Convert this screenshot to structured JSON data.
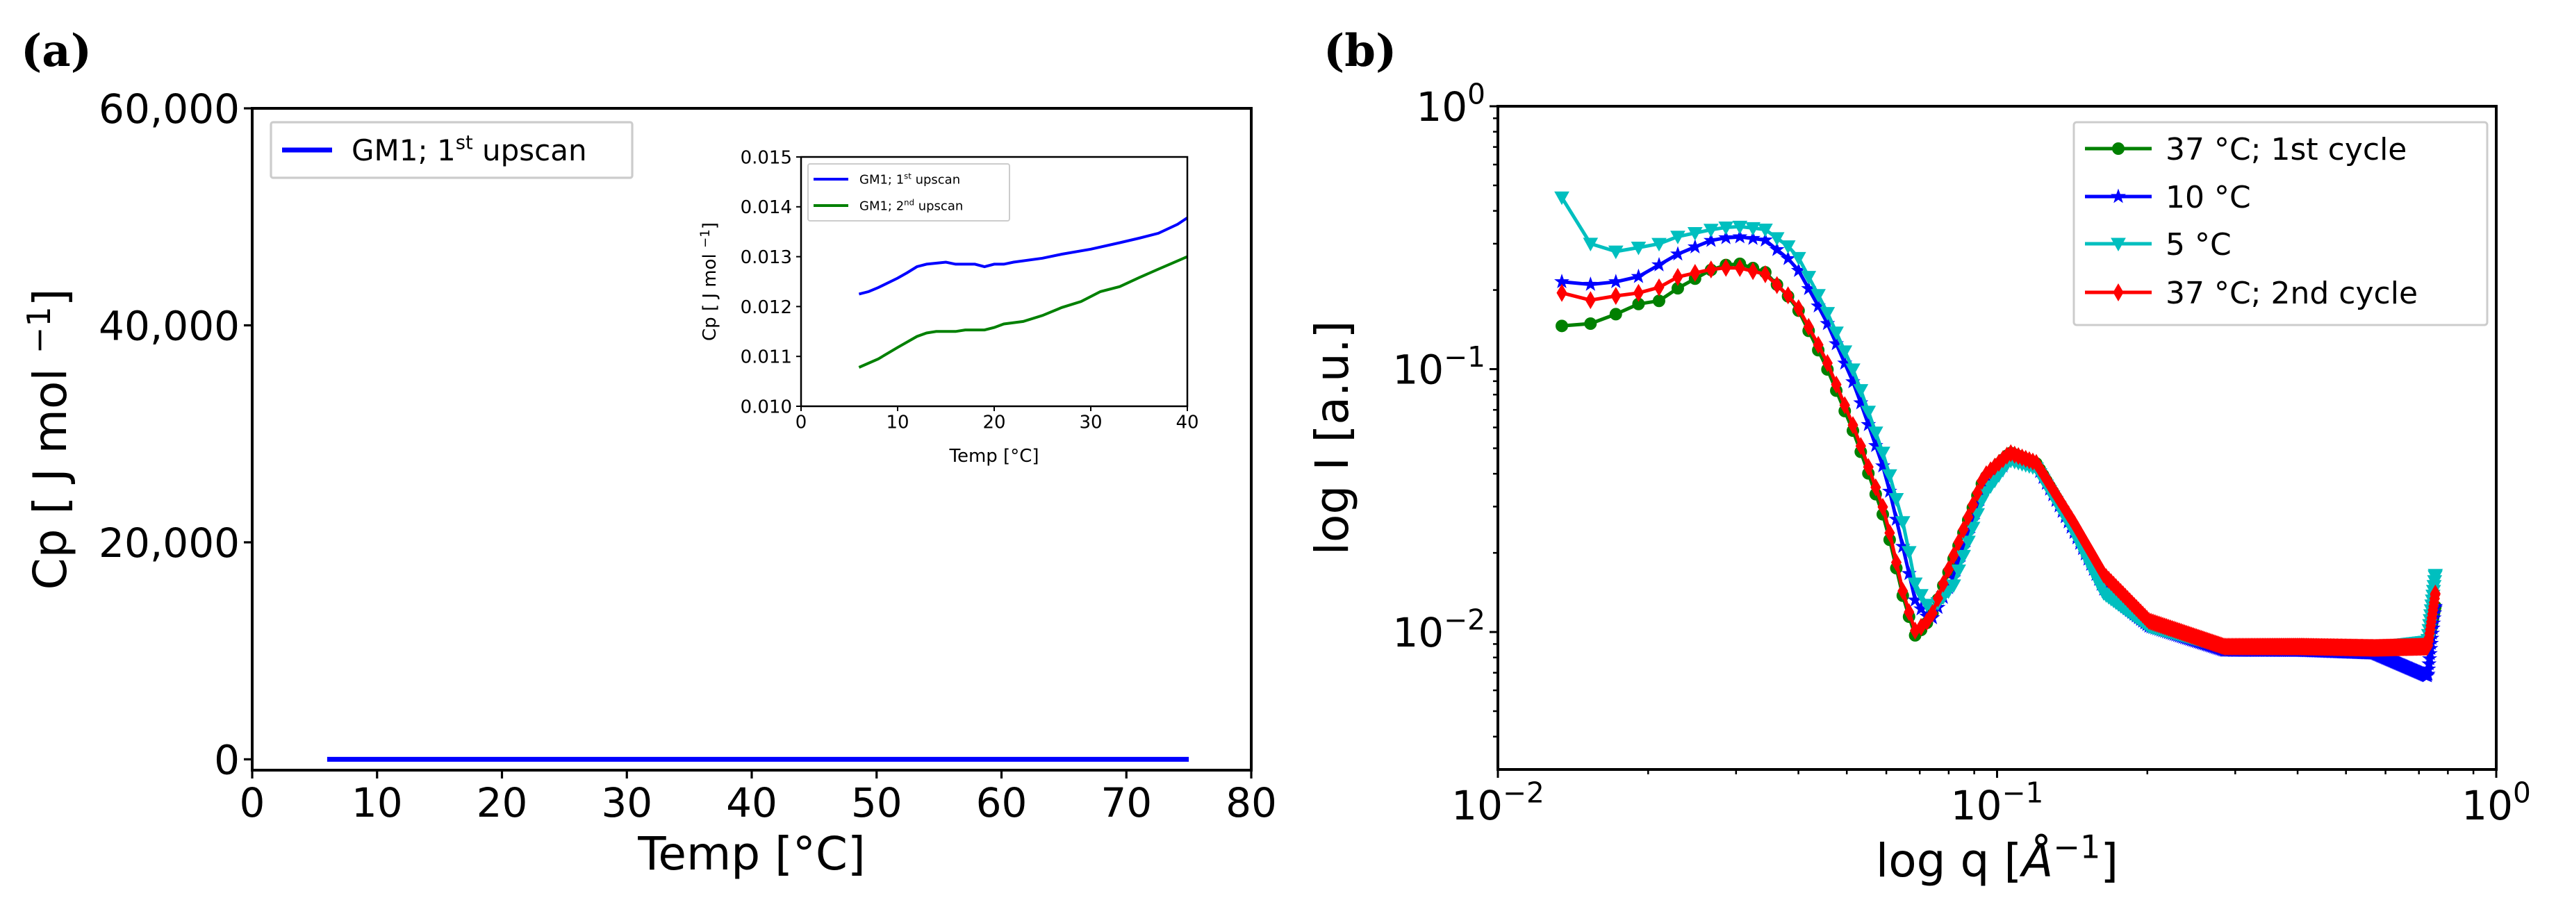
{
  "panel_labels": {
    "a": "(a)",
    "b": "(b)"
  },
  "chart_data": [
    {
      "id": "a_main",
      "type": "line",
      "xlabel": "Temp [°C]",
      "ylabel": {
        "main": "Cp [ J mol ",
        "sup": "−1",
        "close": "]"
      },
      "xlim": [
        0,
        80
      ],
      "ylim": [
        -1000,
        60000
      ],
      "xticks": [
        0,
        10,
        20,
        30,
        40,
        50,
        60,
        70,
        80
      ],
      "xtick_labels": [
        "0",
        "10",
        "20",
        "30",
        "40",
        "50",
        "60",
        "70",
        "80"
      ],
      "yticks": [
        0,
        20000,
        40000,
        60000
      ],
      "ytick_labels": [
        "0",
        "20,000",
        "40,000",
        "60,000"
      ],
      "legend_position": "top-left",
      "series": [
        {
          "name": {
            "pre": "GM1; 1",
            "sup": "st",
            "post": " upscan"
          },
          "color": "#0000ff",
          "x": [
            6,
            75
          ],
          "y": [
            0.0123,
            0.016
          ]
        }
      ]
    },
    {
      "id": "a_inset",
      "type": "line",
      "xlabel": "Temp [°C]",
      "ylabel": {
        "main": "Cp [ J mol ",
        "sup": "−1",
        "close": "]"
      },
      "xlim": [
        0,
        40
      ],
      "ylim": [
        0.01,
        0.015
      ],
      "xticks": [
        0,
        10,
        20,
        30,
        40
      ],
      "xtick_labels": [
        "0",
        "10",
        "20",
        "30",
        "40"
      ],
      "yticks": [
        0.01,
        0.011,
        0.012,
        0.013,
        0.014,
        0.015
      ],
      "ytick_labels": [
        "0.010",
        "0.011",
        "0.012",
        "0.013",
        "0.014",
        "0.015"
      ],
      "legend_position": "top-left",
      "series": [
        {
          "name": {
            "pre": "GM1; 1",
            "sup": "st",
            "post": " upscan"
          },
          "color": "#0000ff",
          "x": [
            6,
            7,
            8,
            10,
            11,
            12,
            13,
            15,
            16,
            18,
            19,
            20,
            21,
            22,
            25,
            27,
            30,
            33,
            35,
            37,
            39,
            40
          ],
          "y": [
            0.01225,
            0.0123,
            0.01238,
            0.01257,
            0.01268,
            0.0128,
            0.01285,
            0.01289,
            0.01285,
            0.01285,
            0.0128,
            0.01285,
            0.01285,
            0.01289,
            0.01297,
            0.01305,
            0.01315,
            0.01328,
            0.01337,
            0.01347,
            0.01365,
            0.01378
          ]
        },
        {
          "name": {
            "pre": "GM1; 2",
            "sup": "nd",
            "post": " upscan"
          },
          "color": "#008000",
          "x": [
            6,
            8,
            10,
            12,
            13,
            14,
            16,
            17,
            19,
            20,
            21,
            23,
            25,
            27,
            29,
            31,
            33,
            35,
            37,
            40
          ],
          "y": [
            0.01078,
            0.01095,
            0.01118,
            0.0114,
            0.01147,
            0.0115,
            0.0115,
            0.01153,
            0.01153,
            0.01158,
            0.01165,
            0.0117,
            0.01182,
            0.01198,
            0.0121,
            0.0123,
            0.0124,
            0.01258,
            0.01275,
            0.013
          ]
        }
      ]
    },
    {
      "id": "b",
      "type": "line",
      "xscale": "log",
      "yscale": "log",
      "xlabel": {
        "main": "log q [",
        "unit": "Å",
        "sup": "−1",
        "close": "]"
      },
      "ylabel": "log I [a.u.]",
      "xlim": [
        0.01,
        1
      ],
      "ylim": [
        0.003,
        1
      ],
      "xticks": [
        0.01,
        0.1,
        1
      ],
      "xtick_labels": [
        {
          "base": "10",
          "exp": "−2"
        },
        {
          "base": "10",
          "exp": "−1"
        },
        {
          "base": "10",
          "exp": "0"
        }
      ],
      "yticks": [
        0.01,
        0.1,
        1
      ],
      "ytick_labels": [
        {
          "base": "10",
          "exp": "−2"
        },
        {
          "base": "10",
          "exp": "−1"
        },
        {
          "base": "10",
          "exp": "0"
        }
      ],
      "legend_position": "top-right",
      "q": [
        0.01343,
        0.01533,
        0.01726,
        0.01914,
        0.0211,
        0.02301,
        0.0269,
        0.02986,
        0.0343,
        0.03942,
        0.04531,
        0.05204,
        0.05977,
        0.06518,
        0.06867,
        0.07363,
        0.08178,
        0.09395,
        0.1061,
        0.1198,
        0.1425,
        0.1637,
        0.2017,
        0.2853,
        0.4036,
        0.571,
        0.7291,
        0.755
      ],
      "series": [
        {
          "name": "37 °C; 1st cycle",
          "color": "#008000",
          "marker": "circle",
          "I": [
            0.146,
            0.149,
            0.162,
            0.177,
            0.182,
            0.204,
            0.24,
            0.255,
            0.234,
            0.177,
            0.104,
            0.0553,
            0.0262,
            0.013,
            0.0096,
            0.0113,
            0.0189,
            0.0381,
            0.0481,
            0.0438,
            0.025,
            0.0157,
            0.0108,
            0.0086,
            0.0088,
            0.0086,
            0.009,
            0.0125
          ]
        },
        {
          "name": "10 °C",
          "color": "#0000ff",
          "marker": "star",
          "I": [
            0.215,
            0.21,
            0.215,
            0.225,
            0.25,
            0.275,
            0.31,
            0.32,
            0.31,
            0.25,
            0.155,
            0.085,
            0.04,
            0.02,
            0.013,
            0.011,
            0.016,
            0.035,
            0.046,
            0.043,
            0.024,
            0.0145,
            0.0105,
            0.0085,
            0.0085,
            0.0083,
            0.0068,
            0.0125
          ]
        },
        {
          "name": "5 °C",
          "color": "#00bfbf",
          "marker": "triangle-down",
          "I": [
            0.45,
            0.3,
            0.28,
            0.29,
            0.3,
            0.32,
            0.34,
            0.35,
            0.34,
            0.28,
            0.17,
            0.095,
            0.045,
            0.025,
            0.015,
            0.012,
            0.015,
            0.033,
            0.045,
            0.042,
            0.024,
            0.014,
            0.0105,
            0.0088,
            0.0088,
            0.0087,
            0.0092,
            0.0165
          ]
        },
        {
          "name": "37 °C; 2nd cycle",
          "color": "#ff0000",
          "marker": "thin-diamond",
          "I": [
            0.195,
            0.183,
            0.19,
            0.195,
            0.205,
            0.225,
            0.24,
            0.245,
            0.23,
            0.18,
            0.11,
            0.058,
            0.028,
            0.0135,
            0.01,
            0.0113,
            0.0195,
            0.039,
            0.048,
            0.044,
            0.026,
            0.0165,
            0.011,
            0.0088,
            0.0088,
            0.0087,
            0.0088,
            0.014
          ]
        }
      ]
    }
  ]
}
